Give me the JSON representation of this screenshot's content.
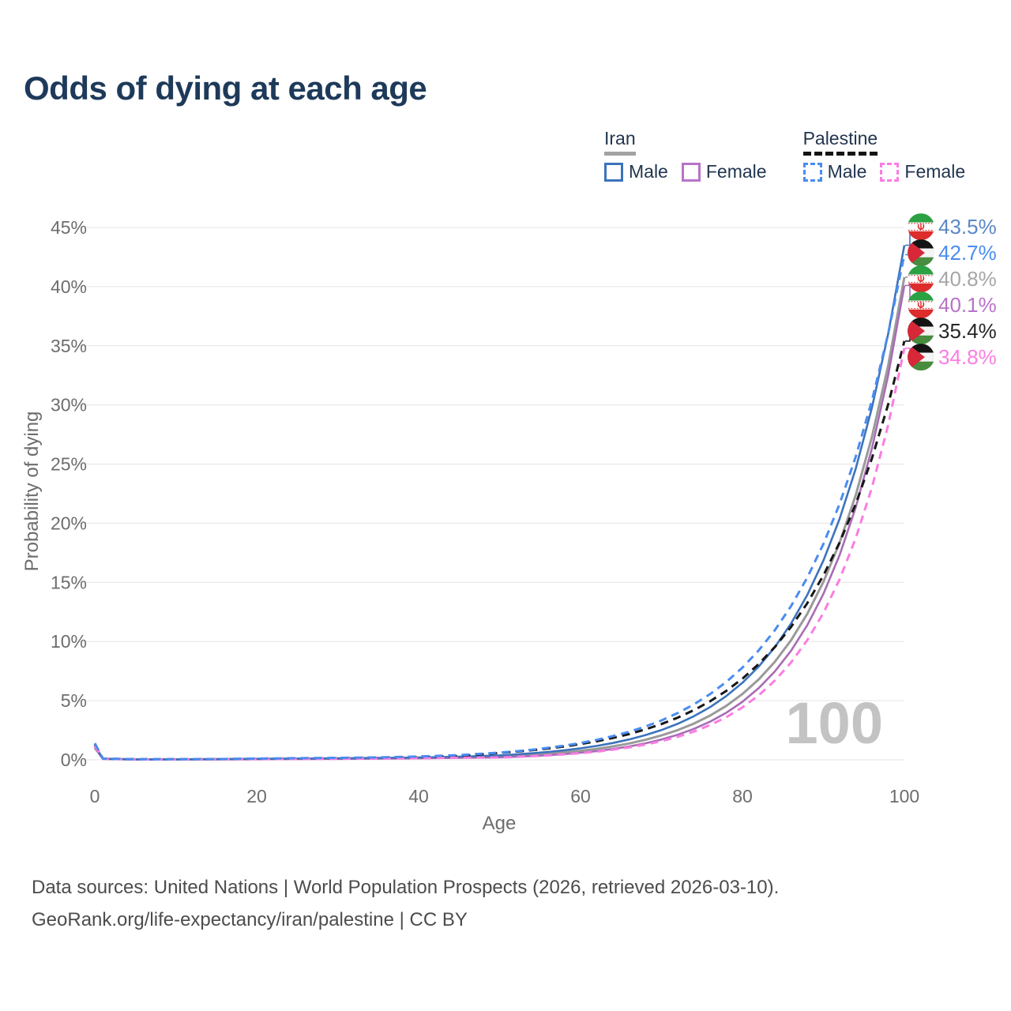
{
  "title": "Odds of dying at each age",
  "legend": {
    "groups": [
      {
        "name": "Iran",
        "line_style": "solid",
        "underline_color": "#a2a2a2",
        "items": [
          {
            "label": "Male",
            "color": "#3c73bb"
          },
          {
            "label": "Female",
            "color": "#b873c9"
          }
        ]
      },
      {
        "name": "Palestine",
        "line_style": "dashed",
        "underline_color": "#141414",
        "items": [
          {
            "label": "Male",
            "color": "#4a8cf0"
          },
          {
            "label": "Female",
            "color": "#fa7de2"
          }
        ]
      }
    ]
  },
  "chart_data": {
    "type": "line",
    "title": "Odds of dying at each age",
    "xlabel": "Age",
    "ylabel": "Probability of dying",
    "xlim": [
      0,
      100
    ],
    "ylim_pct": [
      0,
      45
    ],
    "x_ticks": [
      0,
      20,
      40,
      60,
      80,
      100
    ],
    "y_tick_labels": [
      "0%",
      "5%",
      "10%",
      "15%",
      "20%",
      "25%",
      "30%",
      "35%",
      "40%",
      "45%"
    ],
    "grid": true,
    "legend_position": "top-right",
    "watermark": "100",
    "ages": [
      0,
      1,
      5,
      10,
      15,
      20,
      25,
      30,
      35,
      40,
      45,
      50,
      52,
      54,
      56,
      58,
      60,
      62,
      64,
      66,
      68,
      70,
      72,
      74,
      76,
      78,
      80,
      82,
      84,
      86,
      88,
      90,
      92,
      94,
      96,
      98,
      100
    ],
    "series": [
      {
        "id": "iran-total",
        "name": "Iran — Total",
        "country": "Iran",
        "sex": "Total",
        "style": "solid",
        "color": "#9a9a9a",
        "label_color": "#a6a6a6",
        "flag": "iran",
        "end_label": "40.8%",
        "end_value": 0.408,
        "values": [
          0.011,
          0.00085,
          0.00035,
          0.00035,
          0.0005,
          0.0007,
          0.0009,
          0.0011,
          0.0013,
          0.0017,
          0.0022,
          0.00282,
          0.00344,
          0.0042,
          0.00512,
          0.00625,
          0.00762,
          0.0093,
          0.01135,
          0.01384,
          0.01689,
          0.0206,
          0.02513,
          0.03066,
          0.03741,
          0.04563,
          0.05567,
          0.06792,
          0.08285,
          0.10108,
          0.12331,
          0.15043,
          0.18352,
          0.22389,
          0.27313,
          0.33322,
          0.408
        ]
      },
      {
        "id": "iran-female",
        "name": "Iran — Female",
        "country": "Iran",
        "sex": "Female",
        "style": "solid",
        "color": "#a96cb5",
        "label_color": "#b873c9",
        "flag": "iran",
        "end_label": "40.1%",
        "end_value": 0.401,
        "values": [
          0.01,
          0.0008,
          0.0003,
          0.0003,
          0.0004,
          0.0005,
          0.0007,
          0.0008,
          0.001,
          0.0013,
          0.0017,
          0.0021,
          0.0026,
          0.0032,
          0.00395,
          0.00487,
          0.00601,
          0.00742,
          0.00915,
          0.01129,
          0.01393,
          0.01718,
          0.0212,
          0.02615,
          0.03226,
          0.0398,
          0.0491,
          0.06057,
          0.07472,
          0.09218,
          0.11372,
          0.1403,
          0.17308,
          0.21353,
          0.26343,
          0.32499,
          0.401
        ]
      },
      {
        "id": "iran-male",
        "name": "Iran — Male",
        "country": "Iran",
        "sex": "Male",
        "style": "solid",
        "color": "#3c73bb",
        "label_color": "#5b87c9",
        "flag": "iran",
        "end_label": "43.5%",
        "end_value": 0.435,
        "values": [
          0.012,
          0.0009,
          0.0004,
          0.0004,
          0.0006,
          0.0009,
          0.0011,
          0.0013,
          0.0016,
          0.002,
          0.0027,
          0.00377,
          0.00456,
          0.00551,
          0.00666,
          0.00806,
          0.00974,
          0.01178,
          0.01425,
          0.01723,
          0.02083,
          0.02519,
          0.03046,
          0.03684,
          0.04455,
          0.05387,
          0.06514,
          0.07877,
          0.09525,
          0.11518,
          0.13928,
          0.16843,
          0.20367,
          0.24629,
          0.29782,
          0.36013,
          0.435
        ]
      },
      {
        "id": "palestine-total",
        "name": "Palestine — Total",
        "country": "Palestine",
        "sex": "Total",
        "style": "dashed",
        "color": "#171717",
        "label_color": "#262626",
        "flag": "palestine",
        "end_label": "35.4%",
        "end_value": 0.354,
        "values": [
          0.013,
          0.001,
          0.00045,
          0.00045,
          0.0006,
          0.0009,
          0.0011,
          0.0013,
          0.0017,
          0.0022,
          0.0032,
          0.00587,
          0.00691,
          0.00815,
          0.00959,
          0.0113,
          0.01332,
          0.01569,
          0.01849,
          0.02179,
          0.02568,
          0.03025,
          0.03563,
          0.04198,
          0.04947,
          0.05827,
          0.06866,
          0.0809,
          0.09531,
          0.1123,
          0.13232,
          0.1559,
          0.18369,
          0.21642,
          0.255,
          0.30045,
          0.354
        ]
      },
      {
        "id": "palestine-female",
        "name": "Palestine — Female",
        "country": "Palestine",
        "sex": "Female",
        "style": "dashed",
        "color": "#fa7de2",
        "label_color": "#fa7de2",
        "flag": "palestine",
        "end_label": "34.8%",
        "end_value": 0.348,
        "values": [
          0.012,
          0.0009,
          0.00035,
          0.00035,
          0.00045,
          0.0006,
          0.0007,
          0.0009,
          0.0011,
          0.0014,
          0.0018,
          0.00202,
          0.00248,
          0.00305,
          0.00374,
          0.0046,
          0.00565,
          0.00694,
          0.00853,
          0.01048,
          0.01288,
          0.01583,
          0.01945,
          0.0239,
          0.02936,
          0.03608,
          0.04433,
          0.05447,
          0.06694,
          0.08225,
          0.10106,
          0.12417,
          0.15258,
          0.18748,
          0.23036,
          0.28306,
          0.348
        ]
      },
      {
        "id": "palestine-male",
        "name": "Palestine — Male",
        "country": "Palestine",
        "sex": "Male",
        "style": "dashed",
        "color": "#4a8cf0",
        "label_color": "#4a8cf0",
        "flag": "palestine",
        "end_label": "42.7%",
        "end_value": 0.427,
        "values": [
          0.014,
          0.0011,
          0.0005,
          0.0005,
          0.0007,
          0.0011,
          0.0014,
          0.0017,
          0.0021,
          0.0028,
          0.004,
          0.00609,
          0.00722,
          0.00856,
          0.01014,
          0.01202,
          0.01425,
          0.01689,
          0.02002,
          0.02373,
          0.02813,
          0.03334,
          0.03952,
          0.04684,
          0.05552,
          0.06581,
          0.078,
          0.09246,
          0.10959,
          0.1299,
          0.15397,
          0.1825,
          0.21632,
          0.25641,
          0.30391,
          0.36022,
          0.427
        ]
      }
    ]
  },
  "footer": {
    "line1": "Data sources: United Nations | World Population Prospects (2026, retrieved 2026-03-10).",
    "line2": "GeoRank.org/life-expectancy/iran/palestine | CC BY"
  },
  "colors": {
    "title": "#1e3a5a",
    "grid": "#eaeaea",
    "tick_label": "#6d6d6d",
    "watermark": "#c3c3c3",
    "footer": "#4c4c4c"
  }
}
